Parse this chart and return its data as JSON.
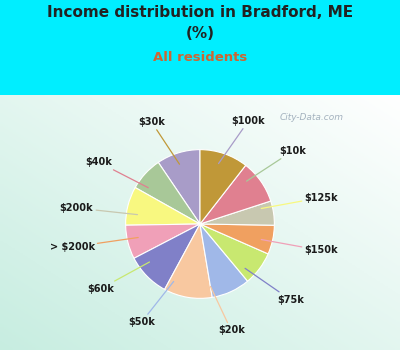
{
  "title_line1": "Income distribution in Bradford, ME",
  "title_line2": "(%)",
  "subtitle": "All residents",
  "title_color": "#222222",
  "subtitle_color": "#cc6633",
  "background_cyan": "#00eeff",
  "watermark": "City-Data.com",
  "labels": [
    "$100k",
    "$10k",
    "$125k",
    "$150k",
    "$75k",
    "$20k",
    "$50k",
    "$60k",
    "> $200k",
    "$200k",
    "$40k",
    "$30k"
  ],
  "values": [
    9,
    7,
    8,
    7,
    9,
    10,
    8,
    7,
    6,
    5,
    9,
    10
  ],
  "colors": [
    "#a89cc8",
    "#a8c898",
    "#f8f880",
    "#f0a0b8",
    "#8080c8",
    "#f8c8a0",
    "#a0b8e8",
    "#c8e870",
    "#f0a060",
    "#c8c8b0",
    "#e08090",
    "#c09838"
  ],
  "figsize": [
    4.0,
    3.5
  ],
  "dpi": 100
}
